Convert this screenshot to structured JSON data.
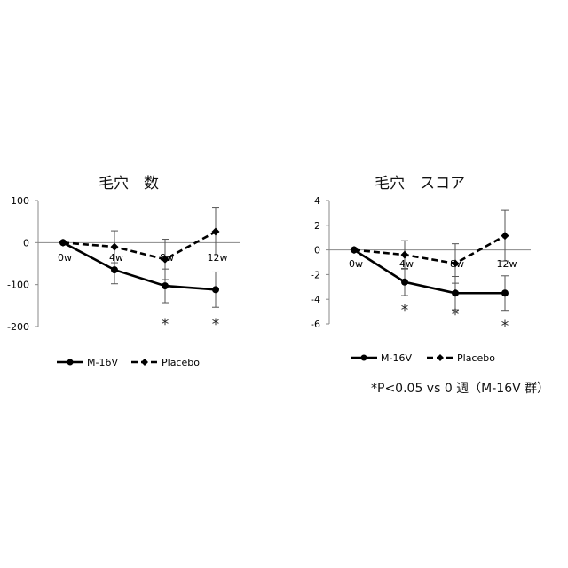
{
  "chart_data": [
    {
      "type": "line",
      "title": "毛穴　数",
      "xlabel": "",
      "ylabel": "",
      "categories": [
        "0w",
        "4w",
        "8w",
        "12w"
      ],
      "ylim": [
        -200,
        100
      ],
      "yticks": [
        100,
        0,
        -100,
        -200
      ],
      "grid": false,
      "legend_position": "bottom",
      "series": [
        {
          "name": "M-16V",
          "style": "solid",
          "color": "#000000",
          "values": [
            0,
            -65,
            -103,
            -112
          ],
          "error": [
            0,
            33,
            40,
            42
          ],
          "significant": [
            false,
            false,
            true,
            true
          ]
        },
        {
          "name": "Placebo",
          "style": "dashed",
          "color": "#000000",
          "values": [
            0,
            -10,
            -40,
            26
          ],
          "error": [
            0,
            38,
            48,
            58
          ],
          "significant": [
            false,
            false,
            false,
            false
          ]
        }
      ],
      "annotations": [
        "*",
        "*"
      ]
    },
    {
      "type": "line",
      "title": "毛穴　スコア",
      "xlabel": "",
      "ylabel": "",
      "categories": [
        "0w",
        "4w",
        "8w",
        "12w"
      ],
      "ylim": [
        -6,
        4
      ],
      "yticks": [
        4,
        2,
        0,
        -2,
        -4,
        -6
      ],
      "grid": false,
      "legend_position": "bottom",
      "series": [
        {
          "name": "M-16V",
          "style": "solid",
          "color": "#000000",
          "values": [
            0,
            -2.6,
            -3.5,
            -3.5
          ],
          "error": [
            0,
            1.1,
            1.35,
            1.4
          ],
          "significant": [
            false,
            true,
            true,
            true
          ]
        },
        {
          "name": "Placebo",
          "style": "dashed",
          "color": "#000000",
          "values": [
            0,
            -0.4,
            -1.1,
            1.15
          ],
          "error": [
            0,
            1.15,
            1.6,
            2.05
          ],
          "significant": [
            false,
            false,
            false,
            false
          ]
        }
      ],
      "annotations": [
        "*",
        "*",
        "*"
      ]
    }
  ],
  "footnote": "*P<0.05 vs 0 週（M-16V 群）"
}
